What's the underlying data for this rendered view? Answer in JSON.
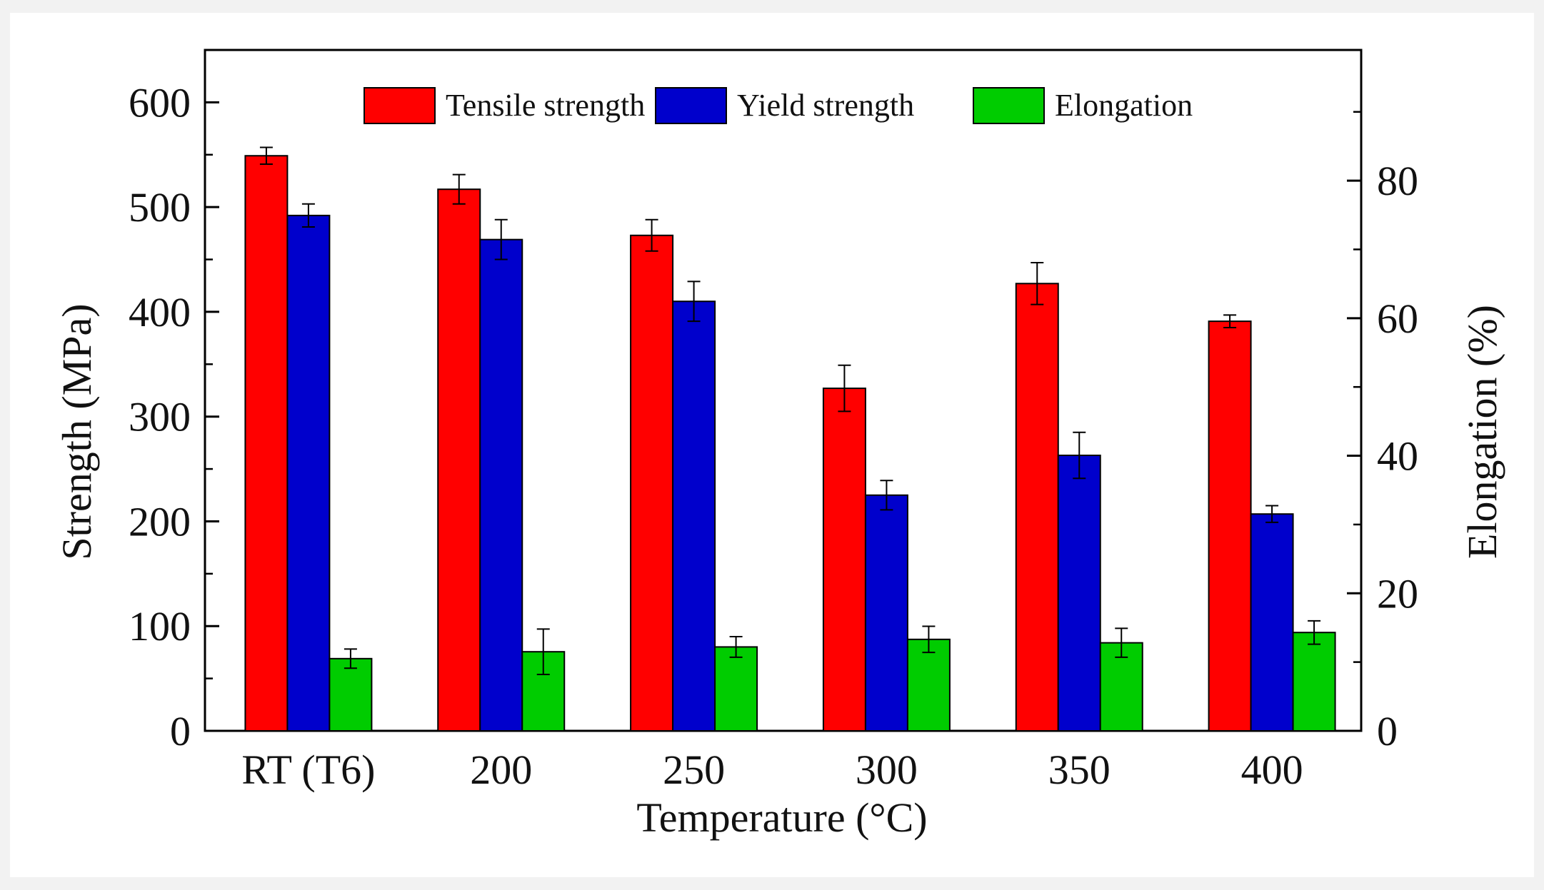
{
  "chart_data": {
    "type": "bar",
    "xlabel": "Temperature (°C)",
    "ylabel": "Strength (MPa)",
    "y2label": "Elongation (%)",
    "categories": [
      "RT (T6)",
      "200",
      "250",
      "300",
      "350",
      "400"
    ],
    "ylim": [
      0,
      650
    ],
    "y_ticks": [
      "0",
      "100",
      "200",
      "300",
      "400",
      "500",
      "600"
    ],
    "y2lim": [
      0,
      99
    ],
    "y2_ticks": [
      "0",
      "20",
      "40",
      "60",
      "80"
    ],
    "legend_position": "top-center",
    "series": [
      {
        "name": "Tensile strength",
        "axis": "left",
        "color": "#ff0000",
        "values": [
          549,
          517,
          473,
          327,
          427,
          391
        ],
        "errors": [
          8,
          14,
          15,
          22,
          20,
          6
        ]
      },
      {
        "name": "Yield strength",
        "axis": "left",
        "color": "#0000cc",
        "values": [
          492,
          469,
          410,
          225,
          263,
          207
        ],
        "errors": [
          11,
          19,
          19,
          14,
          22,
          8
        ]
      },
      {
        "name": "Elongation",
        "axis": "right",
        "color": "#00cc00",
        "values": [
          10.5,
          11.5,
          12.2,
          13.3,
          12.8,
          14.3
        ],
        "errors": [
          1.4,
          3.3,
          1.5,
          1.9,
          2.1,
          1.7
        ]
      }
    ]
  }
}
